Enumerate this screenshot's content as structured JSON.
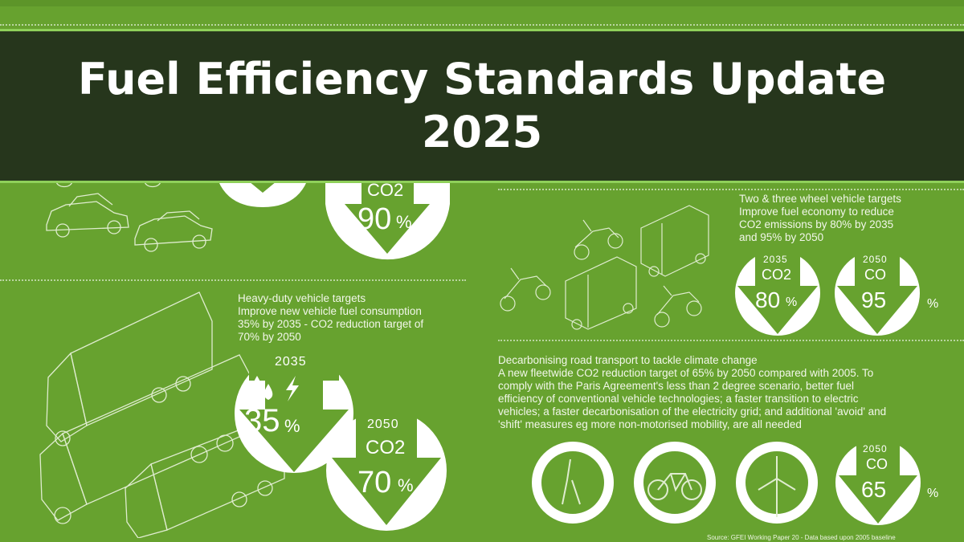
{
  "banner": {
    "title": "Fuel Efficiency Standards Update 2025"
  },
  "top_badge": {
    "label": "CO2",
    "value": "90",
    "unit": "%"
  },
  "heavy_duty": {
    "heading": "Heavy-duty vehicle targets",
    "lines": [
      "Improve new vehicle fuel consumption",
      "35% by 2035 - CO2 reduction target of",
      "70% by 2050"
    ],
    "badge_2035": {
      "year": "2035",
      "value": "35",
      "unit": "%"
    },
    "badge_2050": {
      "year": "2050",
      "label": "CO2",
      "value": "70",
      "unit": "%"
    }
  },
  "two_three_wheel": {
    "heading": "Two & three wheel vehicle targets",
    "lines": [
      "Improve fuel economy to reduce",
      "CO2 emissions by 80% by 2035",
      "and 95% by 2050"
    ],
    "badge_2035": {
      "year": "2035",
      "label": "CO2",
      "value": "80",
      "unit": "%"
    },
    "badge_2050": {
      "year": "2050",
      "label": "CO",
      "value": "95",
      "unit": "%"
    }
  },
  "decarbonising": {
    "heading": "Decarbonising road transport to tackle climate change",
    "lines": [
      "A new fleetwide CO2 reduction target of 65% by 2050 compared with 2005. To",
      "comply with the Paris Agreement's less than 2 degree scenario, better fuel",
      "efficiency of conventional vehicle technologies; a faster transition to electric",
      "vehicles; a faster decarbonisation of the electricity grid; and additional 'avoid' and",
      "'shift' measures eg more non-motorised mobility, are all needed"
    ],
    "badge_2050": {
      "year": "2050",
      "label": "CO",
      "value": "65",
      "unit": "%"
    }
  },
  "source": "Source: GFEI Working Paper 20 - Data based upon 2005 baseline",
  "colors": {
    "background": "#67a22f",
    "banner": "#26361c",
    "banner_border": "#8fd05a"
  }
}
